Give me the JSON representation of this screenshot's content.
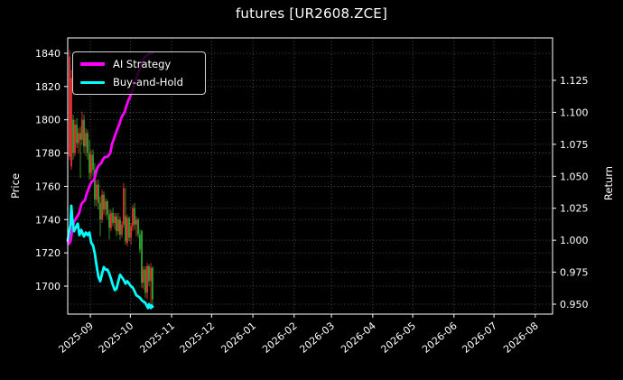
{
  "title": "futures [UR2608.ZCE]",
  "legend": {
    "items": [
      {
        "label": "AI Strategy",
        "color": "#ff00ff"
      },
      {
        "label": "Buy-and-Hold",
        "color": "#00ffff"
      }
    ]
  },
  "axes": {
    "left": {
      "label": "Price",
      "ticks": [
        "1840",
        "1820",
        "1800",
        "1780",
        "1760",
        "1740",
        "1720",
        "1700"
      ]
    },
    "right": {
      "label": "Return",
      "ticks": [
        "1.125",
        "1.100",
        "1.075",
        "1.050",
        "1.025",
        "1.000",
        "0.975",
        "0.950"
      ]
    },
    "x": {
      "ticks": [
        "2025-09",
        "2025-10",
        "2025-11",
        "2025-12",
        "2026-01",
        "2026-02",
        "2026-03",
        "2026-04",
        "2026-05",
        "2026-06",
        "2026-07",
        "2026-08"
      ]
    }
  },
  "chart_data": {
    "type": "candlestick+line",
    "title": "futures [UR2608.ZCE]",
    "xlabel": "",
    "grid": "dotted, both vertical (month) and horizontal (price and return ticks)",
    "legend_position": "upper left",
    "x_axis": {
      "unit": "days since 2025-08-15",
      "domain_days": [
        0,
        364
      ],
      "start_date": "2025-08-15",
      "end_date": "2026-08-14",
      "tick_labels": [
        "2025-09",
        "2025-10",
        "2025-11",
        "2025-12",
        "2026-01",
        "2026-02",
        "2026-03",
        "2026-04",
        "2026-05",
        "2026-06",
        "2026-07",
        "2026-08"
      ]
    },
    "price_axis": {
      "label": "Price",
      "range": [
        1683,
        1849
      ],
      "ticks": [
        1840,
        1820,
        1800,
        1780,
        1760,
        1740,
        1720,
        1700
      ]
    },
    "return_axis": {
      "label": "Return",
      "range": [
        0.942,
        1.158
      ],
      "ticks": [
        1.125,
        1.1,
        1.075,
        1.05,
        1.025,
        1.0,
        0.975,
        0.95
      ]
    },
    "candles": {
      "note": "Chinese color convention: red = up (close>=open), green = down",
      "up_color": "#ee3030",
      "down_color": "#2fa42f",
      "columns": [
        "day",
        "open",
        "high",
        "low",
        "close"
      ],
      "rows": [
        [
          1.4,
          1778,
          1842,
          1776,
          1838
        ],
        [
          2.7,
          1772,
          1830,
          1770,
          1825
        ],
        [
          4.1,
          1800,
          1803,
          1776,
          1780
        ],
        [
          5.4,
          1780,
          1800,
          1778,
          1797
        ],
        [
          6.8,
          1797,
          1801,
          1783,
          1786
        ],
        [
          8.1,
          1786,
          1795,
          1780,
          1792
        ],
        [
          9.5,
          1792,
          1796,
          1765,
          1788
        ],
        [
          10.8,
          1788,
          1805,
          1785,
          1800
        ],
        [
          12.2,
          1800,
          1803,
          1780,
          1784
        ],
        [
          13.6,
          1784,
          1795,
          1778,
          1792
        ],
        [
          14.9,
          1792,
          1794,
          1776,
          1780
        ],
        [
          16.3,
          1780,
          1788,
          1764,
          1768
        ],
        [
          17.6,
          1768,
          1782,
          1765,
          1779
        ],
        [
          19.0,
          1779,
          1782,
          1766,
          1770
        ],
        [
          20.3,
          1770,
          1774,
          1748,
          1752
        ],
        [
          21.7,
          1752,
          1764,
          1748,
          1761
        ],
        [
          23.1,
          1761,
          1764,
          1746,
          1750
        ],
        [
          24.4,
          1750,
          1754,
          1730,
          1740
        ],
        [
          25.8,
          1740,
          1758,
          1738,
          1755
        ],
        [
          27.1,
          1755,
          1757,
          1743,
          1746
        ],
        [
          28.5,
          1746,
          1753,
          1742,
          1751
        ],
        [
          29.8,
          1751,
          1752,
          1740,
          1743
        ],
        [
          31.2,
          1743,
          1746,
          1728,
          1735
        ],
        [
          32.5,
          1735,
          1746,
          1733,
          1744
        ],
        [
          33.9,
          1744,
          1747,
          1736,
          1738
        ],
        [
          35.3,
          1738,
          1744,
          1734,
          1742
        ],
        [
          36.6,
          1742,
          1744,
          1730,
          1733
        ],
        [
          38.0,
          1733,
          1744,
          1731,
          1740
        ],
        [
          39.3,
          1740,
          1742,
          1728,
          1731
        ],
        [
          40.7,
          1731,
          1739,
          1729,
          1737
        ],
        [
          42.0,
          1737,
          1762,
          1735,
          1759
        ],
        [
          43.4,
          1742,
          1759,
          1725,
          1727
        ],
        [
          44.7,
          1726,
          1743,
          1724,
          1741
        ],
        [
          46.1,
          1741,
          1742,
          1727,
          1729
        ],
        [
          47.5,
          1729,
          1738,
          1725,
          1736
        ],
        [
          48.8,
          1736,
          1749,
          1733,
          1747
        ],
        [
          50.2,
          1747,
          1750,
          1734,
          1737
        ],
        [
          51.5,
          1737,
          1742,
          1730,
          1740
        ],
        [
          52.9,
          1740,
          1741,
          1729,
          1731
        ],
        [
          54.2,
          1731,
          1734,
          1720,
          1722
        ],
        [
          55.6,
          1733,
          1734,
          1699,
          1702
        ],
        [
          56.9,
          1702,
          1712,
          1698,
          1710
        ],
        [
          58.3,
          1710,
          1712,
          1693,
          1696
        ],
        [
          59.7,
          1696,
          1714,
          1692,
          1712
        ],
        [
          61.0,
          1712,
          1713,
          1700,
          1703
        ],
        [
          62.4,
          1703,
          1714,
          1688,
          1711
        ],
        [
          63.7,
          1711,
          1712,
          1689,
          1692
        ]
      ]
    },
    "series": [
      {
        "name": "AI Strategy",
        "axis": "return",
        "color": "#ff00ff",
        "points": [
          [
            0,
            1.0
          ],
          [
            0.7,
            0.997
          ],
          [
            2.0,
            0.999
          ],
          [
            3.4,
            1.008
          ],
          [
            4.7,
            1.014
          ],
          [
            6.1,
            1.017
          ],
          [
            7.5,
            1.019
          ],
          [
            8.8,
            1.022
          ],
          [
            10.2,
            1.028
          ],
          [
            11.5,
            1.03
          ],
          [
            12.9,
            1.031
          ],
          [
            14.2,
            1.036
          ],
          [
            15.6,
            1.04
          ],
          [
            17.0,
            1.044
          ],
          [
            18.3,
            1.046
          ],
          [
            19.7,
            1.047
          ],
          [
            21.0,
            1.052
          ],
          [
            22.4,
            1.057
          ],
          [
            23.7,
            1.059
          ],
          [
            25.1,
            1.06
          ],
          [
            26.4,
            1.063
          ],
          [
            27.8,
            1.065
          ],
          [
            29.2,
            1.065
          ],
          [
            30.5,
            1.066
          ],
          [
            31.9,
            1.068
          ],
          [
            33.2,
            1.075
          ],
          [
            34.6,
            1.079
          ],
          [
            35.9,
            1.083
          ],
          [
            37.3,
            1.087
          ],
          [
            38.6,
            1.09
          ],
          [
            40.0,
            1.095
          ],
          [
            41.4,
            1.098
          ],
          [
            42.7,
            1.1
          ],
          [
            44.1,
            1.105
          ],
          [
            45.4,
            1.109
          ],
          [
            46.8,
            1.112
          ],
          [
            48.1,
            1.116
          ],
          [
            49.5,
            1.12
          ],
          [
            50.8,
            1.125
          ],
          [
            52.2,
            1.129
          ],
          [
            53.6,
            1.133
          ],
          [
            54.9,
            1.137
          ],
          [
            56.3,
            1.14
          ],
          [
            57.6,
            1.143
          ],
          [
            59.0,
            1.144
          ],
          [
            60.3,
            1.145
          ],
          [
            61.7,
            1.146
          ],
          [
            63.7,
            1.146
          ]
        ]
      },
      {
        "name": "Buy-and-Hold",
        "axis": "return",
        "color": "#00ffff",
        "points": [
          [
            0,
            1.0
          ],
          [
            2.0,
            1.012
          ],
          [
            2.7,
            1.027
          ],
          [
            3.4,
            1.017
          ],
          [
            4.7,
            1.007
          ],
          [
            6.1,
            1.01
          ],
          [
            7.5,
            1.013
          ],
          [
            8.8,
            1.004
          ],
          [
            10.2,
            1.008
          ],
          [
            12.2,
            1.003
          ],
          [
            13.6,
            1.006
          ],
          [
            14.9,
            1.004
          ],
          [
            16.3,
            1.006
          ],
          [
            17.6,
            0.998
          ],
          [
            19.0,
            0.996
          ],
          [
            20.3,
            0.99
          ],
          [
            21.7,
            0.98
          ],
          [
            23.1,
            0.971
          ],
          [
            24.4,
            0.968
          ],
          [
            25.8,
            0.974
          ],
          [
            27.1,
            0.979
          ],
          [
            28.5,
            0.977
          ],
          [
            29.8,
            0.977
          ],
          [
            31.2,
            0.974
          ],
          [
            32.5,
            0.97
          ],
          [
            33.9,
            0.965
          ],
          [
            35.3,
            0.961
          ],
          [
            36.6,
            0.962
          ],
          [
            38.0,
            0.968
          ],
          [
            39.3,
            0.973
          ],
          [
            40.7,
            0.971
          ],
          [
            42.0,
            0.969
          ],
          [
            43.4,
            0.966
          ],
          [
            44.7,
            0.968
          ],
          [
            46.1,
            0.966
          ],
          [
            47.5,
            0.964
          ],
          [
            48.8,
            0.963
          ],
          [
            50.2,
            0.96
          ],
          [
            51.5,
            0.957
          ],
          [
            52.9,
            0.956
          ],
          [
            54.2,
            0.955
          ],
          [
            55.6,
            0.953
          ],
          [
            56.9,
            0.952
          ],
          [
            58.3,
            0.951
          ],
          [
            59.7,
            0.948
          ],
          [
            60.3,
            0.947
          ],
          [
            61.0,
            0.95
          ],
          [
            61.7,
            0.948
          ],
          [
            62.4,
            0.947
          ],
          [
            63.0,
            0.949
          ],
          [
            63.7,
            0.948
          ]
        ]
      }
    ]
  },
  "colors": {
    "background": "#000000",
    "text": "#ffffff",
    "grid": "#ffffff",
    "spine": "#ffffff",
    "candle_up": "#ee3030",
    "candle_down": "#2fa42f",
    "ai_strategy": "#ff00ff",
    "buy_and_hold": "#00ffff"
  }
}
